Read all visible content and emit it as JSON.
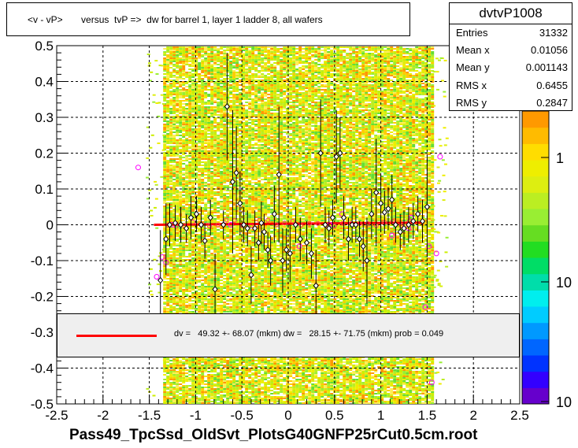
{
  "title": "<v - vP>       versus  tvP =>  dw for barrel 1, layer 1 ladder 8, all wafers",
  "x_axis_title": "Pass49_TpcSsd_OldSvt_PlotsG40GNFP25rCut0.5cm.root",
  "stats": {
    "name": "dvtvP1008",
    "rows": [
      {
        "label": "Entries",
        "value": "31332"
      },
      {
        "label": "Mean x",
        "value": "0.01056"
      },
      {
        "label": "Mean y",
        "value": "0.001143"
      },
      {
        "label": "RMS x",
        "value": "0.6455"
      },
      {
        "label": "RMS y",
        "value": "0.2847"
      }
    ]
  },
  "fit_legend": "dv =   49.32 +- 68.07 (mkm) dw =   28.15 +- 71.75 (mkm) prob = 0.049",
  "colors": {
    "fit_line": "#ff0000",
    "legend_bg": "#efefef",
    "profile_marker": "#000000",
    "outlier_marker": "#ff00ff"
  },
  "chart_data": {
    "type": "heatmap",
    "xlim": [
      -2.5,
      2.5
    ],
    "ylim": [
      -0.5,
      0.5
    ],
    "x_ticks": [
      "-2.5",
      "-2",
      "-1.5",
      "-1",
      "-0.5",
      "0",
      "0.5",
      "1",
      "1.5",
      "2",
      "2.5"
    ],
    "y_ticks": [
      "-0.5",
      "-0.4",
      "-0.3",
      "-0.2",
      "-0.1",
      "0",
      "0.1",
      "0.2",
      "0.3",
      "0.4",
      "0.5"
    ],
    "z_scale": "log",
    "z_ticks": [
      "1",
      "10",
      "10"
    ],
    "grid": true,
    "density_x_range": [
      -1.35,
      1.55
    ],
    "fit_line": {
      "x": [
        -1.45,
        1.45
      ],
      "y": [
        0.0,
        0.006
      ]
    },
    "profile_points": [
      {
        "x": -1.38,
        "y": -0.155,
        "e": 0.14
      },
      {
        "x": -1.32,
        "y": -0.04,
        "e": 0.1
      },
      {
        "x": -1.28,
        "y": 0.0,
        "e": 0.06
      },
      {
        "x": -1.22,
        "y": 0.005,
        "e": 0.05
      },
      {
        "x": -1.16,
        "y": 0.0,
        "e": 0.05
      },
      {
        "x": -1.1,
        "y": -0.01,
        "e": 0.04
      },
      {
        "x": -1.05,
        "y": 0.02,
        "e": 0.06
      },
      {
        "x": -0.99,
        "y": 0.03,
        "e": 0.05
      },
      {
        "x": -0.94,
        "y": 0.0,
        "e": 0.05
      },
      {
        "x": -0.9,
        "y": -0.045,
        "e": 0.05
      },
      {
        "x": -0.84,
        "y": 0.02,
        "e": 0.05
      },
      {
        "x": -0.79,
        "y": -0.18,
        "e": 0.1
      },
      {
        "x": -0.7,
        "y": 0.0,
        "e": 0.04
      },
      {
        "x": -0.66,
        "y": 0.33,
        "e": 0.15
      },
      {
        "x": -0.6,
        "y": 0.12,
        "e": 0.2
      },
      {
        "x": -0.56,
        "y": 0.145,
        "e": 0.13
      },
      {
        "x": -0.52,
        "y": 0.06,
        "e": 0.09
      },
      {
        "x": -0.48,
        "y": 0.0,
        "e": 0.05
      },
      {
        "x": -0.44,
        "y": -0.01,
        "e": 0.05
      },
      {
        "x": -0.4,
        "y": -0.14,
        "e": 0.08
      },
      {
        "x": -0.36,
        "y": -0.01,
        "e": 0.05
      },
      {
        "x": -0.32,
        "y": -0.05,
        "e": 0.05
      },
      {
        "x": -0.29,
        "y": 0.005,
        "e": 0.06
      },
      {
        "x": -0.26,
        "y": -0.02,
        "e": 0.05
      },
      {
        "x": -0.22,
        "y": -0.07,
        "e": 0.05
      },
      {
        "x": -0.19,
        "y": -0.1,
        "e": 0.07
      },
      {
        "x": -0.15,
        "y": 0.03,
        "e": 0.08
      },
      {
        "x": -0.1,
        "y": 0.14,
        "e": 0.19
      },
      {
        "x": -0.06,
        "y": -0.1,
        "e": 0.09
      },
      {
        "x": -0.02,
        "y": -0.07,
        "e": 0.06
      },
      {
        "x": 0.02,
        "y": -0.08,
        "e": 0.08
      },
      {
        "x": 0.08,
        "y": 0.0,
        "e": 0.05
      },
      {
        "x": 0.13,
        "y": -0.04,
        "e": 0.06
      },
      {
        "x": 0.2,
        "y": -0.05,
        "e": 0.06
      },
      {
        "x": 0.25,
        "y": -0.08,
        "e": 0.07
      },
      {
        "x": 0.3,
        "y": -0.17,
        "e": 0.1
      },
      {
        "x": 0.35,
        "y": 0.2,
        "e": 0.15
      },
      {
        "x": 0.4,
        "y": 0.0,
        "e": 0.05
      },
      {
        "x": 0.44,
        "y": -0.01,
        "e": 0.05
      },
      {
        "x": 0.48,
        "y": 0.02,
        "e": 0.05
      },
      {
        "x": 0.52,
        "y": 0.19,
        "e": 0.13
      },
      {
        "x": 0.56,
        "y": 0.2,
        "e": 0.1
      },
      {
        "x": 0.6,
        "y": 0.02,
        "e": 0.06
      },
      {
        "x": 0.65,
        "y": -0.04,
        "e": 0.06
      },
      {
        "x": 0.69,
        "y": 0.0,
        "e": 0.05
      },
      {
        "x": 0.73,
        "y": 0.0,
        "e": 0.05
      },
      {
        "x": 0.77,
        "y": -0.04,
        "e": 0.05
      },
      {
        "x": 0.81,
        "y": -0.06,
        "e": 0.07
      },
      {
        "x": 0.85,
        "y": -0.1,
        "e": 0.12
      },
      {
        "x": 0.9,
        "y": 0.03,
        "e": 0.07
      },
      {
        "x": 0.95,
        "y": 0.09,
        "e": 0.15
      },
      {
        "x": 1.0,
        "y": 0.06,
        "e": 0.08
      },
      {
        "x": 1.04,
        "y": 0.035,
        "e": 0.06
      },
      {
        "x": 1.08,
        "y": 0.045,
        "e": 0.06
      },
      {
        "x": 1.12,
        "y": 0.07,
        "e": 0.07
      },
      {
        "x": 1.16,
        "y": 0.0,
        "e": 0.05
      },
      {
        "x": 1.21,
        "y": -0.02,
        "e": 0.05
      },
      {
        "x": 1.25,
        "y": -0.01,
        "e": 0.05
      },
      {
        "x": 1.3,
        "y": 0.0,
        "e": 0.05
      },
      {
        "x": 1.35,
        "y": 0.01,
        "e": 0.05
      },
      {
        "x": 1.4,
        "y": 0.03,
        "e": 0.05
      },
      {
        "x": 1.45,
        "y": 0.01,
        "e": 0.06
      },
      {
        "x": 1.5,
        "y": 0.05,
        "e": 0.14
      }
    ],
    "outlier_points": [
      {
        "x": -1.62,
        "y": 0.16
      },
      {
        "x": -1.42,
        "y": -0.145
      },
      {
        "x": -1.36,
        "y": -0.09
      },
      {
        "x": -1.32,
        "y": -0.105
      },
      {
        "x": -1.25,
        "y": 0.0
      },
      {
        "x": -0.62,
        "y": 0.0
      },
      {
        "x": 0.12,
        "y": -0.06
      },
      {
        "x": 0.45,
        "y": 0.0
      },
      {
        "x": 0.58,
        "y": 0.03
      },
      {
        "x": 1.12,
        "y": -0.03
      },
      {
        "x": 1.3,
        "y": -0.01
      },
      {
        "x": 1.33,
        "y": 0.02
      },
      {
        "x": 1.48,
        "y": -0.23
      },
      {
        "x": 1.52,
        "y": -0.06
      },
      {
        "x": 1.55,
        "y": -0.44
      },
      {
        "x": 1.6,
        "y": -0.08
      },
      {
        "x": 1.64,
        "y": 0.19
      }
    ]
  }
}
